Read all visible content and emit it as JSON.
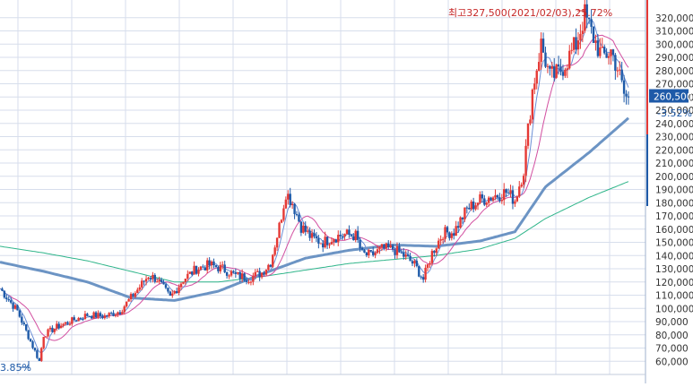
{
  "colors": {
    "up": "#e53935",
    "down": "#1e5aa8",
    "ma_short": "#6b8fd6",
    "ma_mid": "#d24fa0",
    "ma_long": "#6c94c4",
    "ma_longest": "#2fb58a",
    "grid": "#d7deec",
    "price_box": "#1e5aa8"
  },
  "chart_data": {
    "type": "candlestick",
    "title": "",
    "xlabel": "",
    "ylabel": "",
    "ylim": [
      50000,
      330000
    ],
    "y_ticks": [
      "320,000",
      "310,000",
      "300,000",
      "290,000",
      "280,000",
      "270,000",
      "260,000",
      "250,000",
      "240,000",
      "230,000",
      "220,000",
      "210,000",
      "200,000",
      "190,000",
      "180,000",
      "170,000",
      "160,000",
      "150,000",
      "140,000",
      "130,000",
      "120,000",
      "110,000",
      "100,000",
      "90,000",
      "80,000",
      "70,000",
      "60,000"
    ],
    "grid": true,
    "annotations": {
      "high": "최고327,500(2021/02/03),25.72%",
      "low": "3.85%",
      "current_price": "260,500",
      "change": "-3.52%"
    },
    "price_anchors": [
      [
        0,
        115000
      ],
      [
        8,
        98000
      ],
      [
        14,
        75000
      ],
      [
        18,
        60000
      ],
      [
        20,
        80000
      ],
      [
        26,
        86000
      ],
      [
        32,
        90000
      ],
      [
        40,
        95000
      ],
      [
        48,
        94000
      ],
      [
        55,
        98000
      ],
      [
        62,
        112000
      ],
      [
        68,
        125000
      ],
      [
        72,
        122000
      ],
      [
        78,
        108000
      ],
      [
        84,
        122000
      ],
      [
        90,
        130000
      ],
      [
        96,
        133000
      ],
      [
        102,
        130000
      ],
      [
        108,
        125000
      ],
      [
        114,
        123000
      ],
      [
        120,
        127000
      ],
      [
        124,
        135000
      ],
      [
        128,
        162000
      ],
      [
        131,
        188000
      ],
      [
        134,
        180000
      ],
      [
        138,
        162000
      ],
      [
        143,
        153000
      ],
      [
        148,
        150000
      ],
      [
        153,
        154000
      ],
      [
        158,
        156000
      ],
      [
        163,
        155000
      ],
      [
        166,
        141000
      ],
      [
        170,
        140000
      ],
      [
        175,
        145000
      ],
      [
        180,
        145000
      ],
      [
        185,
        140000
      ],
      [
        190,
        133000
      ],
      [
        194,
        122000
      ],
      [
        198,
        142000
      ],
      [
        203,
        157000
      ],
      [
        208,
        158000
      ],
      [
        214,
        175000
      ],
      [
        220,
        182000
      ],
      [
        226,
        185000
      ],
      [
        232,
        188000
      ],
      [
        236,
        182000
      ],
      [
        240,
        205000
      ],
      [
        244,
        265000
      ],
      [
        248,
        300000
      ],
      [
        252,
        275000
      ],
      [
        256,
        278000
      ],
      [
        260,
        288000
      ],
      [
        264,
        300000
      ],
      [
        268,
        322000
      ],
      [
        272,
        305000
      ],
      [
        276,
        290000
      ],
      [
        280,
        295000
      ],
      [
        283,
        282000
      ],
      [
        286,
        262000
      ],
      [
        288,
        258000
      ]
    ],
    "ma_long_anchors": [
      [
        0,
        135000
      ],
      [
        20,
        128000
      ],
      [
        40,
        120000
      ],
      [
        60,
        108000
      ],
      [
        80,
        106000
      ],
      [
        100,
        113000
      ],
      [
        120,
        126000
      ],
      [
        140,
        138000
      ],
      [
        160,
        144000
      ],
      [
        180,
        148000
      ],
      [
        200,
        147000
      ],
      [
        220,
        151000
      ],
      [
        236,
        158000
      ],
      [
        250,
        192000
      ],
      [
        270,
        218000
      ],
      [
        288,
        244000
      ]
    ],
    "ma_longest_anchors": [
      [
        0,
        147000
      ],
      [
        20,
        142000
      ],
      [
        40,
        136000
      ],
      [
        60,
        128000
      ],
      [
        80,
        120000
      ],
      [
        100,
        120000
      ],
      [
        120,
        124000
      ],
      [
        140,
        129000
      ],
      [
        160,
        134000
      ],
      [
        180,
        137000
      ],
      [
        200,
        140000
      ],
      [
        220,
        145000
      ],
      [
        236,
        153000
      ],
      [
        250,
        168000
      ],
      [
        270,
        184000
      ],
      [
        288,
        196000
      ]
    ]
  }
}
